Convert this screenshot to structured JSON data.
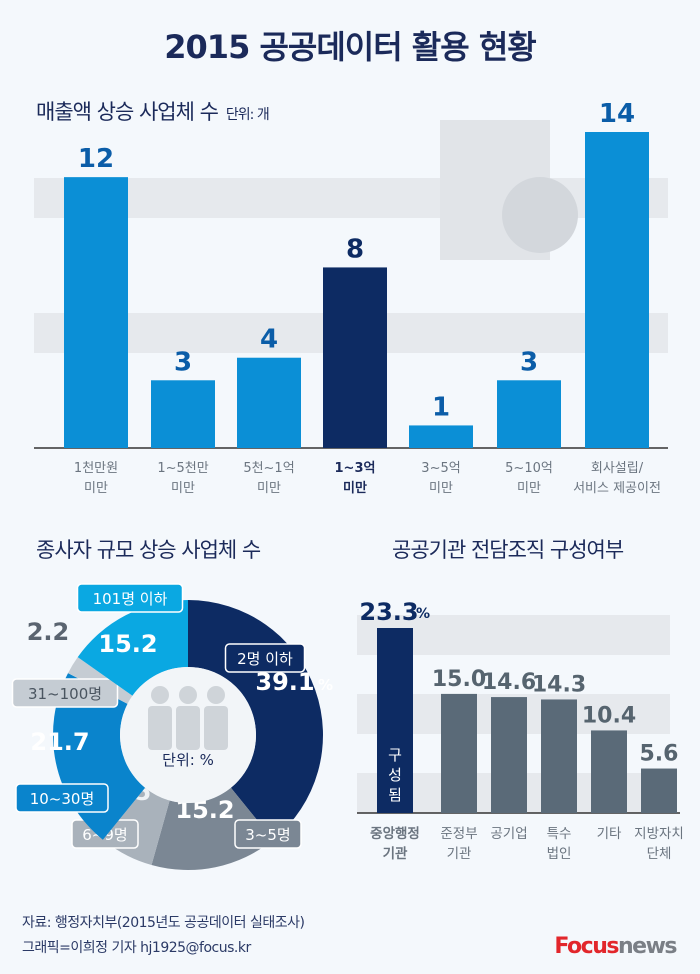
{
  "title": "2015 공공데이터 활용 현황",
  "footer": {
    "source": "자료: 행정자치부(2015년도 공공데이터 실태조사)",
    "credit": "그래픽=이희정 기자 hj1925@focus.kr",
    "logo_focus": "Focus",
    "logo_news": "news"
  },
  "colors": {
    "navy": "#0d2b63",
    "blue": "#0b8fd6",
    "gray": "#5a6a78",
    "bg": "#f4f8fc"
  },
  "chart_data": [
    {
      "type": "bar",
      "title": "매출액 상승 사업체 수",
      "unit": "단위: 개",
      "categories": [
        [
          "1천만원",
          "미만"
        ],
        [
          "1~5천만",
          "미만"
        ],
        [
          "5천~1억",
          "미만"
        ],
        [
          "1~3억",
          "미만"
        ],
        [
          "3~5억",
          "미만"
        ],
        [
          "5~10억",
          "미만"
        ],
        [
          "회사설립/",
          "서비스 제공이전"
        ]
      ],
      "values": [
        12,
        3,
        4,
        8,
        1,
        3,
        14
      ],
      "value_labels": [
        "12",
        "3",
        "4",
        "8",
        "1",
        "3",
        "14"
      ],
      "highlight_index": 3,
      "ylim": [
        0,
        14
      ]
    },
    {
      "type": "pie",
      "title": "종사자 규모 상승 사업체 수",
      "unit": "단위: %",
      "slices": [
        {
          "label": "2명 이하",
          "value": 39.1,
          "value_label": "39.1",
          "color": "#0d2b63"
        },
        {
          "label": "3~5명",
          "value": 15.2,
          "value_label": "15.2",
          "color": "#7b8794"
        },
        {
          "label": "6~9명",
          "value": 6.5,
          "value_label": "6.5",
          "color": "#a9b2bb"
        },
        {
          "label": "10~30명",
          "value": 21.7,
          "value_label": "21.7",
          "color": "#0a84cc"
        },
        {
          "label": "31~100명",
          "value": 2.2,
          "value_label": "2.2",
          "color": "#c5ccd3"
        },
        {
          "label": "101명 이하",
          "value": 15.2,
          "value_label": "15.2",
          "color": "#0aa8e2"
        }
      ],
      "percent_sign": "%"
    },
    {
      "type": "bar",
      "title": "공공기관 전담조직 구성여부",
      "categories": [
        [
          "중앙행정",
          "기관"
        ],
        [
          "준정부",
          "기관"
        ],
        [
          "공기업",
          ""
        ],
        [
          "특수",
          "법인"
        ],
        [
          "기타",
          ""
        ],
        [
          "지방자치",
          "단체"
        ]
      ],
      "values": [
        23.3,
        15.0,
        14.6,
        14.3,
        10.4,
        5.6
      ],
      "value_labels": [
        "23.3",
        "15.0",
        "14.6",
        "14.3",
        "10.4",
        "5.6"
      ],
      "percent_sign": "%",
      "highlight_index": 0,
      "highlight_note": [
        "구",
        "성",
        "됨"
      ],
      "ylim": [
        0,
        23.3
      ]
    }
  ]
}
